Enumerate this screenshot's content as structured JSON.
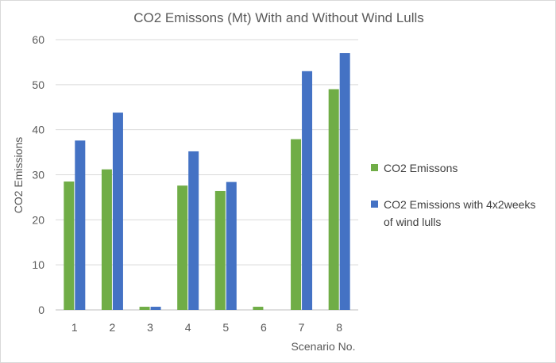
{
  "chart_data": {
    "type": "bar",
    "title": "CO2 Emissons (Mt) With and Without Wind Lulls",
    "xlabel": "Scenario No.",
    "ylabel": "CO2 Emissions",
    "categories": [
      "1",
      "2",
      "3",
      "4",
      "5",
      "6",
      "7",
      "8"
    ],
    "ylim": [
      0,
      60
    ],
    "yticks": [
      0,
      10,
      20,
      30,
      40,
      50,
      60
    ],
    "grid": true,
    "legend_position": "right",
    "series": [
      {
        "name": "CO2 Emissons",
        "color": "#70ad47",
        "values": [
          28.5,
          31.2,
          0.7,
          27.6,
          26.4,
          0.7,
          37.9,
          49.0
        ]
      },
      {
        "name": "CO2 Emissions with 4x2weeks of wind lulls",
        "legend_lines": [
          "CO2 Emissions with 4x2weeks",
          "of wind lulls"
        ],
        "color": "#4472c4",
        "values": [
          37.6,
          43.8,
          0.7,
          35.2,
          28.4,
          null,
          53.0,
          57.0
        ]
      }
    ]
  }
}
